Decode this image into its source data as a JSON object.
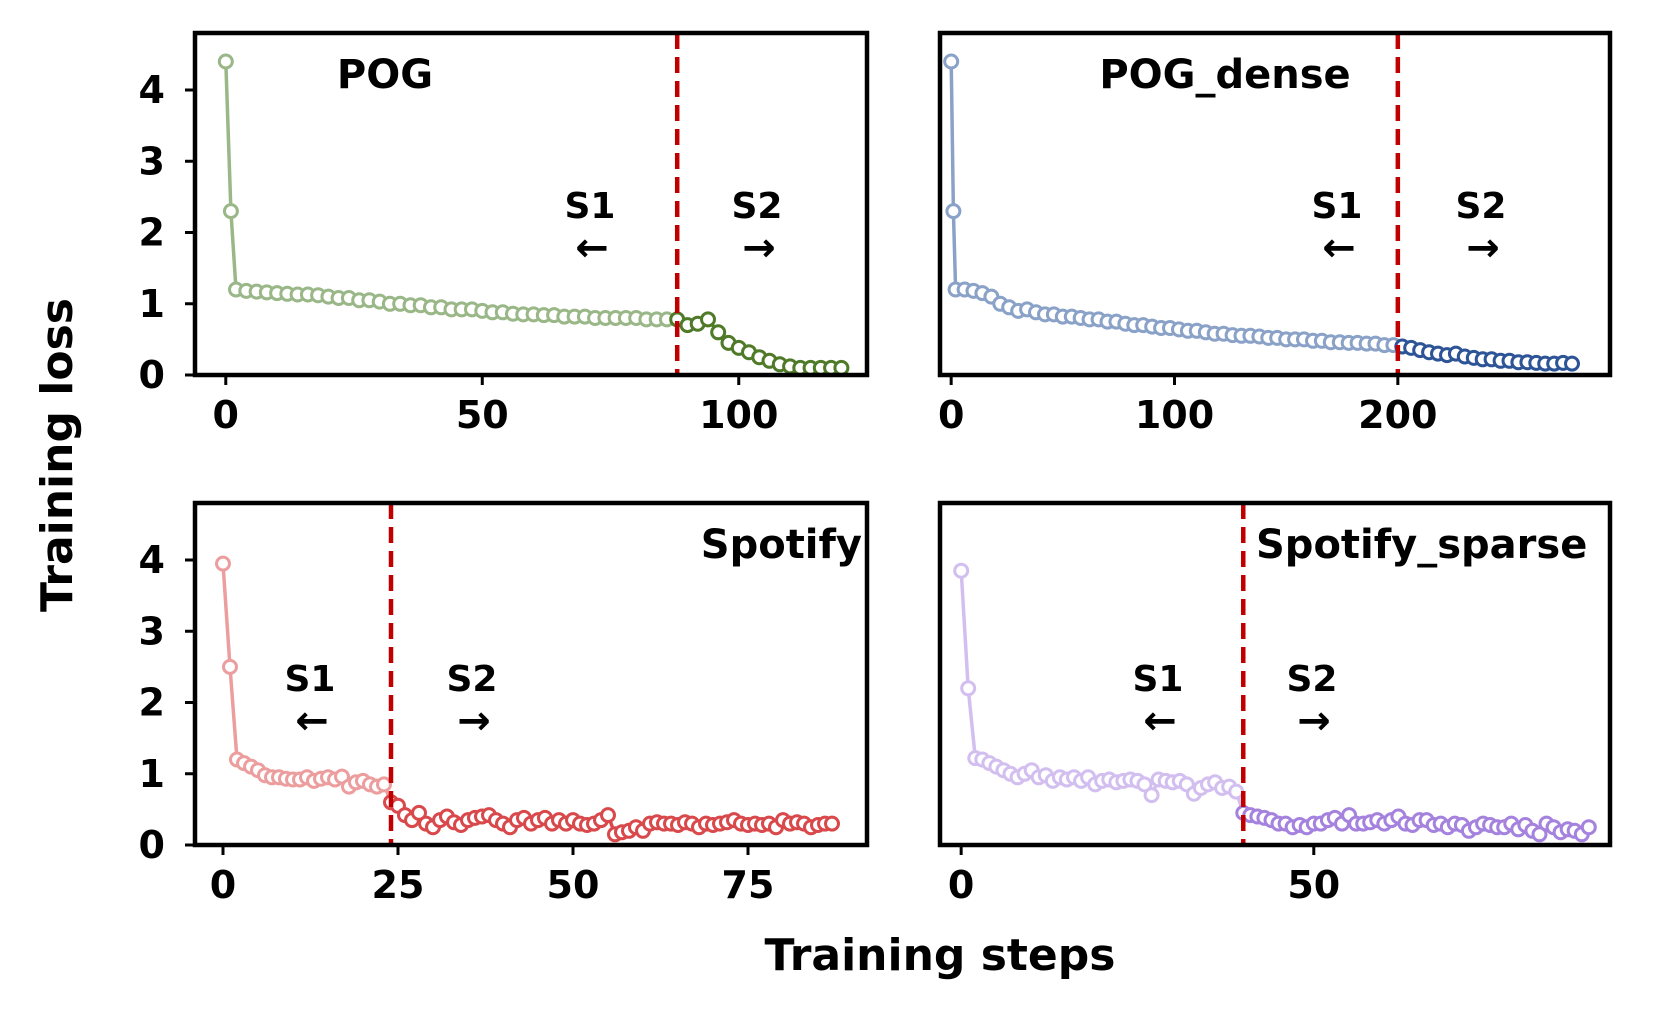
{
  "chart_data": {
    "type": "line",
    "ylabel": "Training loss",
    "xlabel": "Training steps",
    "panels": [
      {
        "title": "POG",
        "color": "#4f7a28",
        "faded_color": "#9ab788",
        "xlim": [
          -6,
          125
        ],
        "xticks": [
          0,
          50,
          100
        ],
        "ylim": [
          0,
          4.8
        ],
        "yticks": [
          0,
          1,
          2,
          3,
          4
        ],
        "show_yticks": true,
        "split_at": 88,
        "stage_labels": [
          "S1",
          "S2"
        ],
        "arrows": [
          "←",
          "→"
        ],
        "x": [
          0,
          1,
          2,
          4,
          6,
          8,
          10,
          12,
          14,
          16,
          18,
          20,
          22,
          24,
          26,
          28,
          30,
          32,
          34,
          36,
          38,
          40,
          42,
          44,
          46,
          48,
          50,
          52,
          54,
          56,
          58,
          60,
          62,
          64,
          66,
          68,
          70,
          72,
          74,
          76,
          78,
          80,
          82,
          84,
          86,
          88,
          90,
          92,
          94,
          96,
          98,
          100,
          102,
          104,
          106,
          108,
          110,
          112,
          114,
          116,
          118,
          120
        ],
        "y": [
          4.4,
          2.3,
          1.2,
          1.18,
          1.17,
          1.16,
          1.15,
          1.14,
          1.13,
          1.13,
          1.12,
          1.1,
          1.08,
          1.08,
          1.05,
          1.05,
          1.03,
          1.0,
          1.0,
          0.98,
          0.98,
          0.95,
          0.95,
          0.92,
          0.92,
          0.92,
          0.9,
          0.88,
          0.88,
          0.86,
          0.85,
          0.85,
          0.84,
          0.84,
          0.82,
          0.82,
          0.82,
          0.8,
          0.8,
          0.8,
          0.8,
          0.8,
          0.78,
          0.78,
          0.78,
          0.78,
          0.7,
          0.72,
          0.78,
          0.6,
          0.45,
          0.38,
          0.32,
          0.25,
          0.2,
          0.15,
          0.12,
          0.1,
          0.1,
          0.1,
          0.1,
          0.1
        ]
      },
      {
        "title": "POG_dense",
        "color": "#2d5496",
        "faded_color": "#8aa2c8",
        "xlim": [
          -5,
          295
        ],
        "xticks": [
          0,
          100,
          200
        ],
        "ylim": [
          0,
          4.8
        ],
        "yticks": [
          0,
          1,
          2,
          3,
          4
        ],
        "show_yticks": false,
        "split_at": 200,
        "stage_labels": [
          "S1",
          "S2"
        ],
        "arrows": [
          "←",
          "→"
        ],
        "x": [
          0,
          1,
          2,
          6,
          10,
          14,
          18,
          22,
          26,
          30,
          34,
          38,
          42,
          46,
          50,
          54,
          58,
          62,
          66,
          70,
          74,
          78,
          82,
          86,
          90,
          94,
          98,
          102,
          106,
          110,
          114,
          118,
          122,
          126,
          130,
          134,
          138,
          142,
          146,
          150,
          154,
          158,
          162,
          166,
          170,
          174,
          178,
          182,
          186,
          190,
          194,
          198,
          202,
          206,
          210,
          214,
          218,
          222,
          226,
          230,
          234,
          238,
          242,
          246,
          250,
          254,
          258,
          262,
          266,
          270,
          274,
          278
        ],
        "y": [
          4.4,
          2.3,
          1.2,
          1.2,
          1.18,
          1.15,
          1.1,
          1.0,
          0.95,
          0.9,
          0.92,
          0.88,
          0.85,
          0.85,
          0.82,
          0.82,
          0.8,
          0.78,
          0.78,
          0.75,
          0.75,
          0.72,
          0.7,
          0.7,
          0.68,
          0.66,
          0.66,
          0.64,
          0.62,
          0.62,
          0.6,
          0.58,
          0.58,
          0.56,
          0.55,
          0.55,
          0.54,
          0.52,
          0.52,
          0.5,
          0.5,
          0.5,
          0.48,
          0.48,
          0.46,
          0.46,
          0.45,
          0.45,
          0.44,
          0.44,
          0.42,
          0.42,
          0.4,
          0.38,
          0.35,
          0.32,
          0.3,
          0.28,
          0.3,
          0.26,
          0.24,
          0.22,
          0.22,
          0.2,
          0.2,
          0.18,
          0.18,
          0.17,
          0.16,
          0.16,
          0.17,
          0.16
        ]
      },
      {
        "title": "Spotify",
        "color": "#d9484a",
        "faded_color": "#ec9e9f",
        "xlim": [
          -4,
          92
        ],
        "xticks": [
          0,
          25,
          50,
          75
        ],
        "ylim": [
          0,
          4.8
        ],
        "yticks": [
          0,
          1,
          2,
          3,
          4
        ],
        "show_yticks": true,
        "split_at": 24,
        "stage_labels": [
          "S1",
          "S2"
        ],
        "arrows": [
          "←",
          "→"
        ],
        "x": [
          0,
          1,
          2,
          3,
          4,
          5,
          6,
          7,
          8,
          9,
          10,
          11,
          12,
          13,
          14,
          15,
          16,
          17,
          18,
          19,
          20,
          21,
          22,
          23,
          24,
          25,
          26,
          27,
          28,
          29,
          30,
          31,
          32,
          33,
          34,
          35,
          36,
          37,
          38,
          39,
          40,
          41,
          42,
          43,
          44,
          45,
          46,
          47,
          48,
          49,
          50,
          51,
          52,
          53,
          54,
          55,
          56,
          57,
          58,
          59,
          60,
          61,
          62,
          63,
          64,
          65,
          66,
          67,
          68,
          69,
          70,
          71,
          72,
          73,
          74,
          75,
          76,
          77,
          78,
          79,
          80,
          81,
          82,
          83,
          84,
          85,
          86,
          87
        ],
        "y": [
          3.95,
          2.5,
          1.2,
          1.15,
          1.1,
          1.05,
          0.98,
          0.95,
          0.95,
          0.93,
          0.92,
          0.92,
          0.95,
          0.9,
          0.93,
          0.95,
          0.92,
          0.96,
          0.82,
          0.88,
          0.9,
          0.85,
          0.82,
          0.85,
          0.6,
          0.55,
          0.42,
          0.35,
          0.45,
          0.3,
          0.25,
          0.35,
          0.4,
          0.32,
          0.28,
          0.35,
          0.38,
          0.4,
          0.42,
          0.35,
          0.3,
          0.25,
          0.35,
          0.38,
          0.3,
          0.35,
          0.38,
          0.3,
          0.35,
          0.3,
          0.35,
          0.3,
          0.28,
          0.3,
          0.35,
          0.42,
          0.15,
          0.18,
          0.2,
          0.25,
          0.2,
          0.3,
          0.32,
          0.3,
          0.3,
          0.28,
          0.32,
          0.3,
          0.25,
          0.3,
          0.28,
          0.3,
          0.32,
          0.35,
          0.3,
          0.28,
          0.3,
          0.28,
          0.3,
          0.25,
          0.35,
          0.3,
          0.32,
          0.3,
          0.25,
          0.28,
          0.3,
          0.3
        ]
      },
      {
        "title": "Spotify_sparse",
        "color": "#a582de",
        "faded_color": "#d2bff0",
        "xlim": [
          -3,
          92
        ],
        "xticks": [
          0,
          50
        ],
        "ylim": [
          0,
          4.8
        ],
        "yticks": [
          0,
          1,
          2,
          3,
          4
        ],
        "show_yticks": false,
        "split_at": 40,
        "stage_labels": [
          "S1",
          "S2"
        ],
        "arrows": [
          "←",
          "→"
        ],
        "x": [
          0,
          1,
          2,
          3,
          4,
          5,
          6,
          7,
          8,
          9,
          10,
          11,
          12,
          13,
          14,
          15,
          16,
          17,
          18,
          19,
          20,
          21,
          22,
          23,
          24,
          25,
          26,
          27,
          28,
          29,
          30,
          31,
          32,
          33,
          34,
          35,
          36,
          37,
          38,
          39,
          40,
          41,
          42,
          43,
          44,
          45,
          46,
          47,
          48,
          49,
          50,
          51,
          52,
          53,
          54,
          55,
          56,
          57,
          58,
          59,
          60,
          61,
          62,
          63,
          64,
          65,
          66,
          67,
          68,
          69,
          70,
          71,
          72,
          73,
          74,
          75,
          76,
          77,
          78,
          79,
          80,
          81,
          82,
          83,
          84,
          85,
          86,
          87,
          88,
          89
        ],
        "y": [
          3.85,
          2.2,
          1.22,
          1.2,
          1.15,
          1.1,
          1.05,
          1.0,
          0.95,
          1.0,
          1.05,
          0.95,
          0.98,
          0.9,
          0.95,
          0.92,
          0.95,
          0.9,
          0.95,
          0.85,
          0.9,
          0.92,
          0.88,
          0.9,
          0.92,
          0.9,
          0.85,
          0.7,
          0.92,
          0.9,
          0.88,
          0.9,
          0.85,
          0.72,
          0.8,
          0.85,
          0.88,
          0.8,
          0.82,
          0.75,
          0.45,
          0.42,
          0.4,
          0.38,
          0.35,
          0.3,
          0.3,
          0.25,
          0.28,
          0.25,
          0.3,
          0.3,
          0.35,
          0.38,
          0.3,
          0.42,
          0.3,
          0.3,
          0.32,
          0.35,
          0.3,
          0.35,
          0.4,
          0.3,
          0.28,
          0.35,
          0.35,
          0.28,
          0.3,
          0.25,
          0.3,
          0.28,
          0.2,
          0.25,
          0.3,
          0.28,
          0.25,
          0.25,
          0.3,
          0.22,
          0.28,
          0.2,
          0.15,
          0.3,
          0.25,
          0.18,
          0.22,
          0.2,
          0.15,
          0.25
        ]
      }
    ]
  }
}
